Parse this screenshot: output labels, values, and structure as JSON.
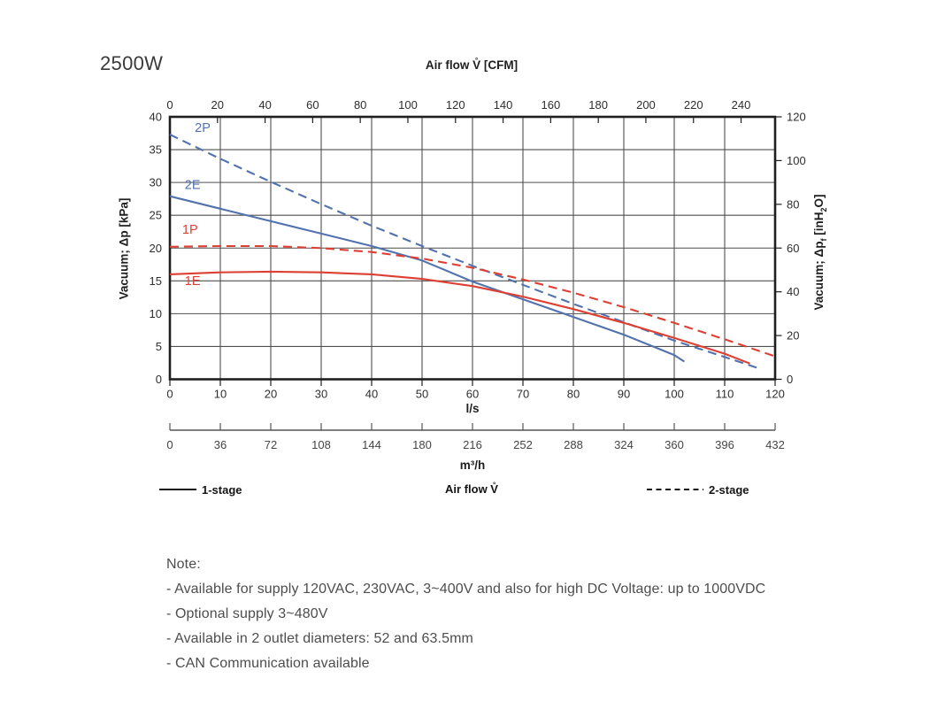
{
  "chart_data": {
    "type": "line",
    "title": "2500W",
    "x_axis_bottom": {
      "label": "l/s",
      "min": 0,
      "max": 120,
      "ticks": [
        0,
        10,
        20,
        30,
        40,
        50,
        60,
        70,
        80,
        90,
        100,
        110,
        120
      ]
    },
    "x_axis_secondary": {
      "label": "m³/h",
      "min": 0,
      "max": 432,
      "ticks": [
        0,
        36,
        72,
        108,
        144,
        180,
        216,
        252,
        288,
        324,
        360,
        396,
        432
      ]
    },
    "x_axis_top": {
      "label": "Air flow V̊ [CFM]",
      "min": 0,
      "max": 254.3,
      "ticks": [
        0,
        20,
        40,
        60,
        80,
        100,
        120,
        140,
        160,
        180,
        200,
        220,
        240
      ]
    },
    "y_axis_left": {
      "label": "Vacuum; Δp [kPa]",
      "min": 0,
      "max": 40,
      "ticks": [
        0,
        5,
        10,
        15,
        20,
        25,
        30,
        35,
        40
      ]
    },
    "y_axis_right": {
      "min": 0,
      "max": 120,
      "ticks": [
        0,
        20,
        40,
        60,
        80,
        100,
        120
      ],
      "label_parts": {
        "p1": "Vacuum; Δp",
        "sub1": "f",
        "p2": " [inH",
        "sub2": "2",
        "p3": "O]"
      }
    },
    "grid": true,
    "legend_position": "bottom",
    "series": [
      {
        "name": "2P",
        "stage": "2-stage",
        "line_style": "dashed",
        "color": "#5272ae",
        "label_pos": {
          "x": 6.5,
          "y": 37.7
        },
        "points": [
          [
            0,
            37.3
          ],
          [
            10,
            33.6
          ],
          [
            20,
            30.1
          ],
          [
            30,
            26.7
          ],
          [
            40,
            23.4
          ],
          [
            50,
            20.3
          ],
          [
            60,
            17.3
          ],
          [
            70,
            14.4
          ],
          [
            80,
            11.5
          ],
          [
            90,
            8.7
          ],
          [
            100,
            5.9
          ],
          [
            110,
            3.4
          ],
          [
            117,
            1.6
          ]
        ]
      },
      {
        "name": "2E",
        "stage": "1-stage",
        "line_style": "solid",
        "color": "#5272ae",
        "label_pos": {
          "x": 4.5,
          "y": 29.0
        },
        "points": [
          [
            0,
            27.9
          ],
          [
            10,
            26.0
          ],
          [
            20,
            24.1
          ],
          [
            30,
            22.2
          ],
          [
            40,
            20.3
          ],
          [
            50,
            18.1
          ],
          [
            60,
            14.9
          ],
          [
            70,
            12.2
          ],
          [
            80,
            9.5
          ],
          [
            90,
            6.8
          ],
          [
            100,
            3.7
          ],
          [
            102,
            2.7
          ]
        ]
      },
      {
        "name": "1P",
        "stage": "2-stage",
        "line_style": "dashed",
        "color": "#dd4033",
        "label_pos": {
          "x": 4.0,
          "y": 22.2
        },
        "points": [
          [
            0,
            20.2
          ],
          [
            10,
            20.3
          ],
          [
            20,
            20.3
          ],
          [
            30,
            20.0
          ],
          [
            40,
            19.4
          ],
          [
            50,
            18.4
          ],
          [
            60,
            17.0
          ],
          [
            70,
            15.2
          ],
          [
            80,
            13.2
          ],
          [
            90,
            11.0
          ],
          [
            100,
            8.6
          ],
          [
            110,
            6.1
          ],
          [
            120,
            3.5
          ]
        ]
      },
      {
        "name": "1E",
        "stage": "1-stage",
        "line_style": "solid",
        "color": "#dd4033",
        "label_pos": {
          "x": 4.5,
          "y": 14.4
        },
        "points": [
          [
            0,
            16.0
          ],
          [
            10,
            16.3
          ],
          [
            20,
            16.4
          ],
          [
            30,
            16.3
          ],
          [
            40,
            16.0
          ],
          [
            50,
            15.3
          ],
          [
            60,
            14.2
          ],
          [
            70,
            12.6
          ],
          [
            80,
            10.7
          ],
          [
            90,
            8.6
          ],
          [
            100,
            6.3
          ],
          [
            110,
            3.9
          ],
          [
            115,
            2.4
          ]
        ]
      }
    ]
  },
  "legend": {
    "stage1_label": "1-stage",
    "airflow_label": "Air flow V̊",
    "stage2_label": "2-stage"
  },
  "note": {
    "heading": "Note:",
    "lines": [
      "- Available for supply 120VAC, 230VAC, 3~400V and also for high DC Voltage: up to 1000VDC",
      "- Optional supply 3~480V",
      "- Available in 2 outlet diameters: 52 and 63.5mm",
      "- CAN Communication available"
    ]
  },
  "colors": {
    "two_stage_blue": "#5272ae",
    "one_stage_red": "#dd4033",
    "grid": "#4f4f4f",
    "frame": "#1f1f1f"
  }
}
